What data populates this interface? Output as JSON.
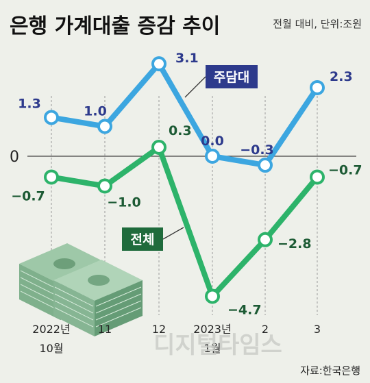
{
  "title": "은행 가계대출 증감 추이",
  "subtitle": "전월 대비, 단위:조원",
  "source": "자료:한국은행",
  "watermark": "디지털타임스",
  "chart_data": {
    "type": "line",
    "categories": [
      {
        "line1": "2022년",
        "line2": "10월"
      },
      {
        "line1": "11",
        "line2": ""
      },
      {
        "line1": "12",
        "line2": ""
      },
      {
        "line1": "2023년",
        "line2": "1월"
      },
      {
        "line1": "2",
        "line2": ""
      },
      {
        "line1": "3",
        "line2": ""
      }
    ],
    "zero_label": "0",
    "ylim": [
      -5.5,
      4
    ],
    "grid": "vertical dashed",
    "series": [
      {
        "name": "주담대",
        "color": "#3ca6e0",
        "label_color": "#2d3a8c",
        "legend_bg": "#2d3a8c",
        "values": [
          1.3,
          1.0,
          3.1,
          0.0,
          -0.3,
          2.3
        ],
        "labels": [
          "1.3",
          "1.0",
          "3.1",
          "0.0",
          "−0.3",
          "2.3"
        ]
      },
      {
        "name": "전체",
        "color": "#2db36a",
        "label_color": "#1c5a34",
        "legend_bg": "#1f6b3c",
        "values": [
          -0.7,
          -1.0,
          0.3,
          -4.7,
          -2.8,
          -0.7
        ],
        "labels": [
          "−0.7",
          "−1.0",
          "0.3",
          "−4.7",
          "−2.8",
          "−0.7"
        ]
      }
    ]
  }
}
